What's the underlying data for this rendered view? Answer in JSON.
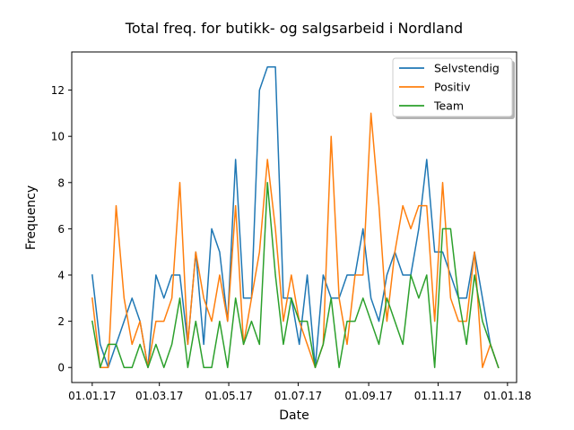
{
  "chart_data": {
    "type": "line",
    "title": "Total freq. for butikk- og salgsarbeid i Nordland",
    "xlabel": "Date",
    "ylabel": "Frequency",
    "x_tick_labels": [
      "01.01.17",
      "01.03.17",
      "01.05.17",
      "01.07.17",
      "01.09.17",
      "01.11.17",
      "01.01.18"
    ],
    "x_tick_dates": [
      "2017-01-01",
      "2017-03-01",
      "2017-05-01",
      "2017-07-01",
      "2017-09-01",
      "2017-11-01",
      "2018-01-01"
    ],
    "x_range": [
      "2016-12-14",
      "2018-01-09"
    ],
    "y_ticks": [
      0,
      2,
      4,
      6,
      8,
      10,
      12
    ],
    "ylim": [
      -0.65,
      13.65
    ],
    "grid": false,
    "legend_position": "top-right",
    "dates": [
      "2017-01-01",
      "2017-01-08",
      "2017-01-15",
      "2017-01-22",
      "2017-01-29",
      "2017-02-05",
      "2017-02-12",
      "2017-02-19",
      "2017-02-26",
      "2017-03-05",
      "2017-03-12",
      "2017-03-19",
      "2017-03-26",
      "2017-04-02",
      "2017-04-09",
      "2017-04-16",
      "2017-04-23",
      "2017-04-30",
      "2017-05-07",
      "2017-05-14",
      "2017-05-21",
      "2017-05-28",
      "2017-06-04",
      "2017-06-11",
      "2017-06-18",
      "2017-06-25",
      "2017-07-02",
      "2017-07-09",
      "2017-07-16",
      "2017-07-23",
      "2017-07-30",
      "2017-08-06",
      "2017-08-13",
      "2017-08-20",
      "2017-08-27",
      "2017-09-03",
      "2017-09-10",
      "2017-09-17",
      "2017-09-24",
      "2017-10-01",
      "2017-10-08",
      "2017-10-15",
      "2017-10-22",
      "2017-10-29",
      "2017-11-05",
      "2017-11-12",
      "2017-11-19",
      "2017-11-26",
      "2017-12-03",
      "2017-12-10",
      "2017-12-17",
      "2017-12-24"
    ],
    "series": [
      {
        "name": "Selvstendig",
        "color": "#1f77b4",
        "values": [
          4,
          1,
          0,
          1,
          2,
          3,
          2,
          0,
          4,
          3,
          4,
          4,
          1,
          5,
          1,
          6,
          5,
          2,
          9,
          3,
          3,
          12,
          13,
          13,
          3,
          3,
          1,
          4,
          0,
          4,
          3,
          3,
          4,
          4,
          6,
          3,
          2,
          4,
          5,
          4,
          4,
          6,
          9,
          5,
          5,
          4,
          3,
          3,
          5,
          3,
          1,
          0
        ]
      },
      {
        "name": "Positiv",
        "color": "#ff7f0e",
        "values": [
          3,
          0,
          0,
          7,
          3,
          1,
          2,
          0,
          2,
          2,
          3,
          8,
          1,
          5,
          3,
          2,
          4,
          2,
          7,
          1,
          3,
          5,
          9,
          6,
          2,
          4,
          2,
          1,
          0,
          1,
          10,
          3,
          1,
          4,
          4,
          11,
          7,
          2,
          5,
          7,
          6,
          7,
          7,
          2,
          8,
          3,
          2,
          2,
          5,
          0,
          1,
          0
        ]
      },
      {
        "name": "Team",
        "color": "#2ca02c",
        "values": [
          2,
          0,
          1,
          1,
          0,
          0,
          1,
          0,
          1,
          0,
          1,
          3,
          0,
          2,
          0,
          0,
          2,
          0,
          3,
          1,
          2,
          1,
          8,
          4,
          1,
          3,
          2,
          2,
          0,
          1,
          3,
          0,
          2,
          2,
          3,
          2,
          1,
          3,
          2,
          1,
          4,
          3,
          4,
          0,
          6,
          6,
          3,
          1,
          4,
          2,
          1,
          0
        ]
      }
    ]
  }
}
